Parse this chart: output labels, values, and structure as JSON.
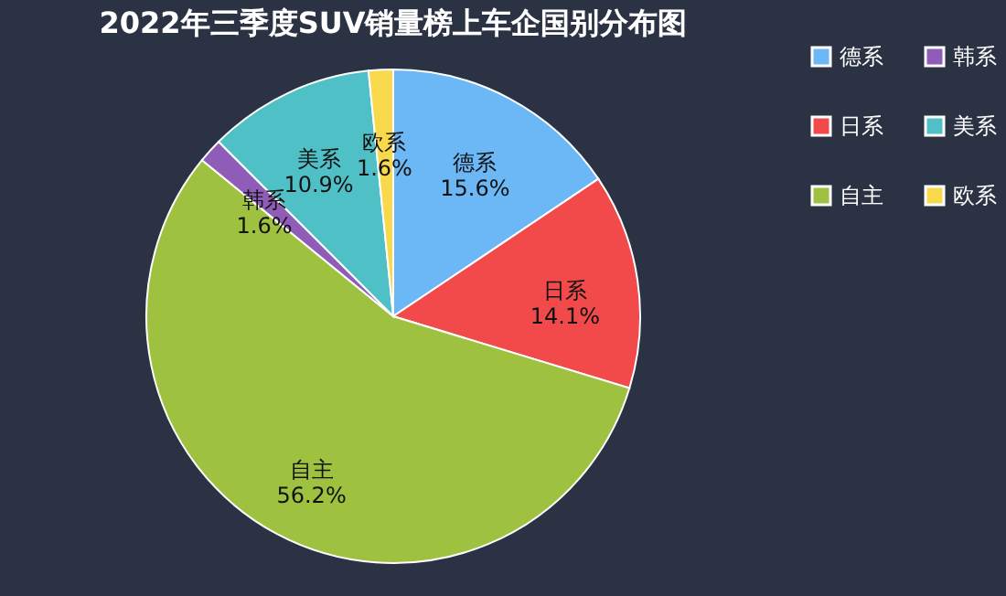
{
  "chart_data": {
    "type": "pie",
    "title": "2022年三季度SUV销量榜上车企国别分布图",
    "categories": [
      "德系",
      "日系",
      "自主",
      "韩系",
      "美系",
      "欧系"
    ],
    "values": [
      15.6,
      14.1,
      56.2,
      1.6,
      10.9,
      1.6
    ],
    "value_labels": [
      "15.6%",
      "14.1%",
      "56.2%",
      "1.6%",
      "10.9%",
      "1.6%"
    ],
    "colors": [
      "#6cb8f6",
      "#f24a4a",
      "#9ec23f",
      "#8f5db7",
      "#4fc0c6",
      "#f8d94b"
    ],
    "legend": "right"
  }
}
